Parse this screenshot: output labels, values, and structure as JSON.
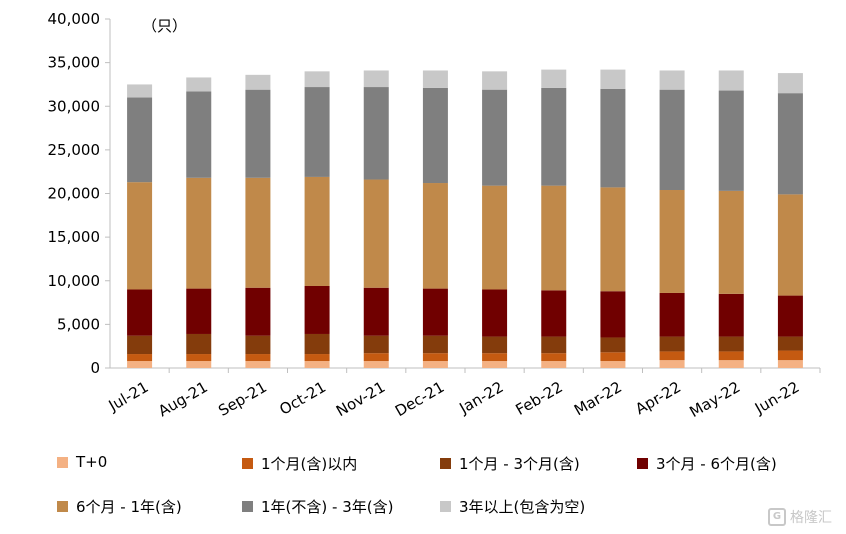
{
  "chart_data": {
    "type": "bar",
    "stacked": true,
    "unit_label": "（只）",
    "categories": [
      "Jul-21",
      "Aug-21",
      "Sep-21",
      "Oct-21",
      "Nov-21",
      "Dec-21",
      "Jan-22",
      "Feb-22",
      "Mar-22",
      "Apr-22",
      "May-22",
      "Jun-22"
    ],
    "ylim": [
      0,
      40000
    ],
    "yticks": [
      0,
      5000,
      10000,
      15000,
      20000,
      25000,
      30000,
      35000,
      40000
    ],
    "ytick_labels": [
      "0",
      "5,000",
      "10,000",
      "15,000",
      "20,000",
      "25,000",
      "30,000",
      "35,000",
      "40,000"
    ],
    "grid": false,
    "legend_position": "bottom",
    "series": [
      {
        "name": "T+0",
        "color": "#f4b183",
        "values": [
          800,
          800,
          800,
          800,
          800,
          800,
          800,
          800,
          800,
          900,
          900,
          900
        ]
      },
      {
        "name": "1个月(含)以内",
        "color": "#c55a11",
        "values": [
          800,
          800,
          800,
          800,
          900,
          900,
          900,
          900,
          1000,
          1000,
          1000,
          1100
        ]
      },
      {
        "name": "1个月 - 3个月(含)",
        "color": "#843c0c",
        "values": [
          2100,
          2300,
          2100,
          2300,
          2000,
          2000,
          1900,
          1900,
          1700,
          1700,
          1700,
          1600
        ]
      },
      {
        "name": "3个月 - 6个月(含)",
        "color": "#700000",
        "values": [
          5300,
          5200,
          5500,
          5500,
          5500,
          5400,
          5400,
          5300,
          5300,
          5000,
          4900,
          4700
        ]
      },
      {
        "name": "6个月 - 1年(含)",
        "color": "#c0894a",
        "values": [
          12300,
          12700,
          12600,
          12500,
          12400,
          12100,
          11900,
          12000,
          11900,
          11800,
          11800,
          11600
        ]
      },
      {
        "name": "1年(不含) - 3年(含)",
        "color": "#7f7f7f",
        "values": [
          9700,
          9900,
          10100,
          10300,
          10600,
          10900,
          11000,
          11200,
          11300,
          11500,
          11500,
          11600
        ]
      },
      {
        "name": "3年以上(包含为空)",
        "color": "#c8c8c8",
        "values": [
          1500,
          1600,
          1700,
          1800,
          1900,
          2000,
          2100,
          2100,
          2200,
          2200,
          2300,
          2300
        ]
      }
    ]
  },
  "watermark": {
    "logo": "G",
    "text": "格隆汇"
  }
}
